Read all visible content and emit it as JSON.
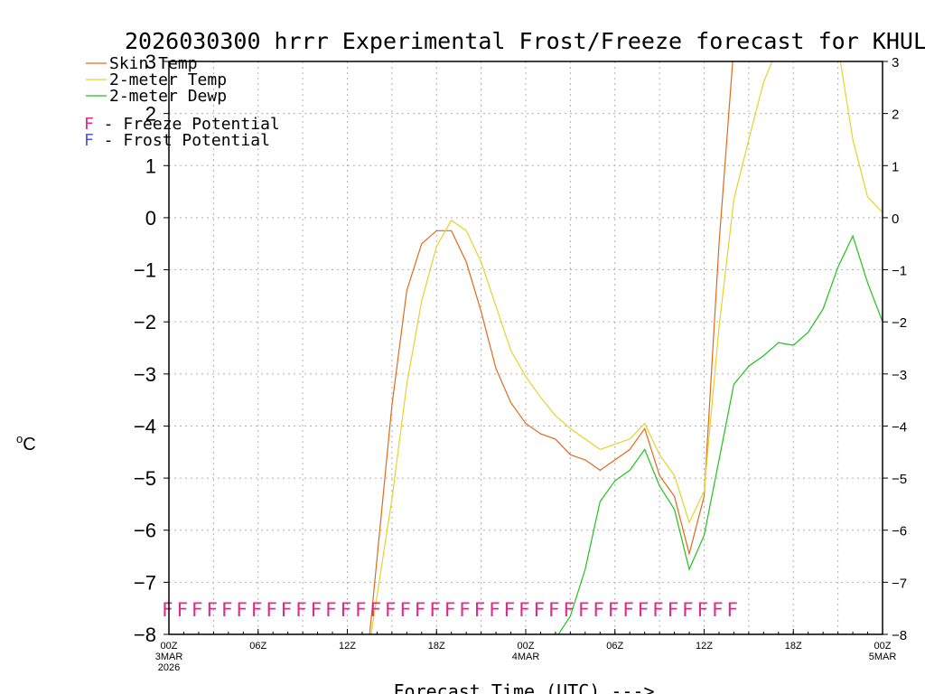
{
  "chart_data": {
    "type": "line",
    "title": "2026030300 hrrr Experimental Frost/Freeze forecast for KHUL",
    "ylabel": "°C",
    "ylabel_superscript": "o",
    "ylabel_unit": "C",
    "xlabel": "Forecast Time (UTC) --->",
    "ylim": [
      -8,
      3
    ],
    "xlim": [
      0,
      48
    ],
    "yticks": [
      3,
      2,
      1,
      0,
      -1,
      -2,
      -3,
      -4,
      -5,
      -6,
      -7,
      -8
    ],
    "ytick_labels": [
      "3",
      "2",
      "1",
      "0",
      "−1",
      "−2",
      "−3",
      "−4",
      "−5",
      "−6",
      "−7",
      "−8"
    ],
    "xticks": [
      {
        "hour": 0,
        "label": "00Z",
        "sub": [
          "3MAR",
          "2026"
        ]
      },
      {
        "hour": 6,
        "label": "06Z",
        "sub": []
      },
      {
        "hour": 12,
        "label": "12Z",
        "sub": []
      },
      {
        "hour": 18,
        "label": "18Z",
        "sub": []
      },
      {
        "hour": 24,
        "label": "00Z",
        "sub": [
          "4MAR"
        ]
      },
      {
        "hour": 30,
        "label": "06Z",
        "sub": []
      },
      {
        "hour": 36,
        "label": "12Z",
        "sub": []
      },
      {
        "hour": 42,
        "label": "18Z",
        "sub": []
      },
      {
        "hour": 48,
        "label": "00Z",
        "sub": [
          "5MAR"
        ]
      }
    ],
    "grid": true,
    "series": [
      {
        "name": "Skin Temp",
        "color": "#e06a1c",
        "x": [
          13.5,
          15,
          16,
          17,
          18,
          19,
          20,
          21,
          22,
          23,
          24,
          25,
          26,
          27,
          28,
          29,
          30,
          31,
          32,
          33,
          34,
          35,
          36,
          37,
          38
        ],
        "y": [
          -8.0,
          -3.6,
          -1.4,
          -0.5,
          -0.25,
          -0.25,
          -0.85,
          -1.8,
          -2.9,
          -3.55,
          -3.95,
          -4.15,
          -4.25,
          -4.55,
          -4.65,
          -4.85,
          -4.65,
          -4.45,
          -4.05,
          -4.95,
          -5.35,
          -6.45,
          -5.35,
          -0.5,
          3.3
        ]
      },
      {
        "name": "2-meter Temp",
        "color": "#e6d22a",
        "x": [
          13.6,
          15,
          16,
          17,
          18,
          19,
          20,
          21,
          22,
          23,
          24,
          25,
          26,
          27,
          28,
          29,
          30,
          31,
          32,
          33,
          34,
          35,
          36,
          37,
          38,
          39,
          40,
          41,
          42,
          43,
          44,
          45,
          46,
          47,
          48
        ],
        "y": [
          -8.0,
          -5.4,
          -3.2,
          -1.6,
          -0.55,
          -0.05,
          -0.25,
          -0.85,
          -1.7,
          -2.55,
          -3.05,
          -3.45,
          -3.8,
          -4.05,
          -4.25,
          -4.45,
          -4.35,
          -4.25,
          -3.95,
          -4.55,
          -4.95,
          -5.85,
          -5.25,
          -2.1,
          0.35,
          1.5,
          2.6,
          3.3,
          3.3,
          3.3,
          3.3,
          3.3,
          1.5,
          0.4,
          0.1
        ]
      },
      {
        "name": "2-meter Dewp",
        "color": "#22c21e",
        "x": [
          26.2,
          27,
          28,
          29,
          30,
          31,
          32,
          33,
          34,
          35,
          36,
          37,
          38,
          39,
          40,
          41,
          42,
          43,
          44,
          45,
          46,
          47,
          48
        ],
        "y": [
          -8.0,
          -7.65,
          -6.75,
          -5.45,
          -5.05,
          -4.85,
          -4.45,
          -5.15,
          -5.6,
          -6.75,
          -6.1,
          -4.65,
          -3.2,
          -2.85,
          -2.65,
          -2.4,
          -2.45,
          -2.2,
          -1.75,
          -0.95,
          -0.35,
          -1.25,
          -2.0
        ]
      }
    ],
    "legend": [
      {
        "label": "Skin Temp",
        "color": "#e06a1c"
      },
      {
        "label": "2-meter Temp",
        "color": "#e6d22a"
      },
      {
        "label": "2-meter Dewp",
        "color": "#22c21e"
      }
    ],
    "flag_legend": [
      {
        "letter": "F",
        "text": " - Freeze Potential",
        "color": "#e02a8a"
      },
      {
        "letter": "F",
        "text": " - Frost Potential",
        "color": "#4a5ad8"
      }
    ],
    "freeze_flags": {
      "letter": "F",
      "color": "#e02a8a",
      "y": -7.5,
      "hours": [
        0,
        1,
        2,
        3,
        4,
        5,
        6,
        7,
        8,
        9,
        10,
        11,
        12,
        13,
        14,
        15,
        16,
        17,
        18,
        19,
        20,
        21,
        22,
        23,
        24,
        25,
        26,
        27,
        28,
        29,
        30,
        31,
        32,
        33,
        34,
        35,
        36,
        37,
        38
      ]
    },
    "right_axis_ticks": [
      "3",
      "2",
      "1",
      "0",
      "−1",
      "−2",
      "−3",
      "−4",
      "−5",
      "−6",
      "−7",
      "−8"
    ]
  }
}
